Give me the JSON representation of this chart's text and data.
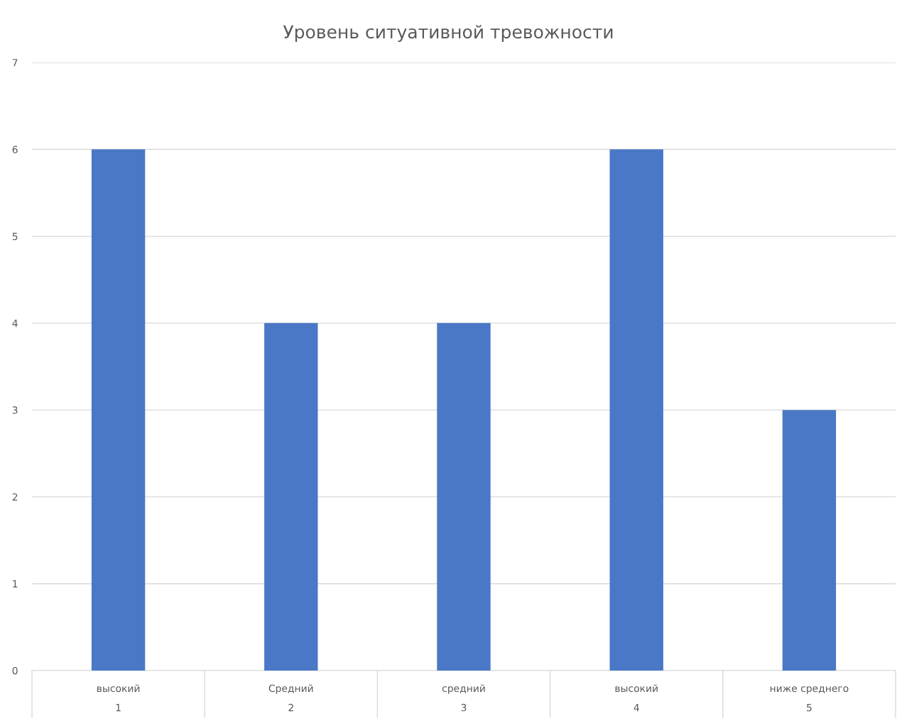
{
  "chart_data": {
    "type": "bar",
    "title": "Уровень ситуативной тревожности",
    "categories": [
      "высокий\n1",
      "Средний\n2",
      "средний\n3",
      "высокий\n4",
      "ниже среднего\n5"
    ],
    "values": [
      6,
      4,
      4,
      6,
      3
    ],
    "color": "#4a78c6",
    "ylim": [
      0,
      7
    ],
    "yticks": [
      0,
      1,
      2,
      3,
      4,
      5,
      6,
      7
    ],
    "grid": "y",
    "legend": false
  }
}
